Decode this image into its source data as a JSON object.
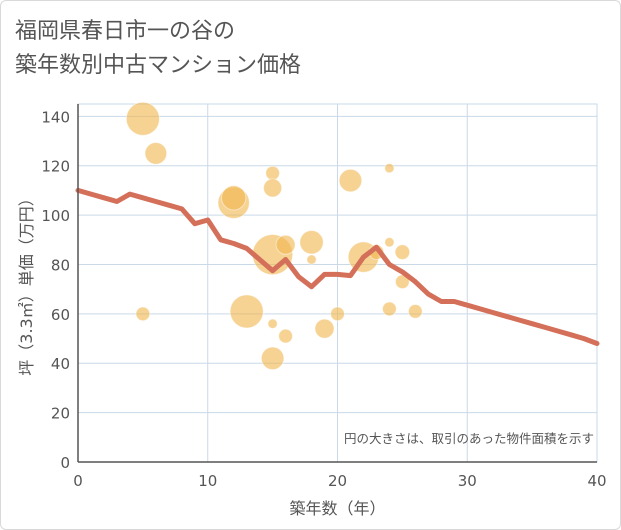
{
  "title": {
    "line1": "福岡県春日市一の谷の",
    "line2": "築年数別中古マンション価格"
  },
  "chart_data": {
    "type": "scatter",
    "title": "福岡県春日市一の谷の 築年数別中古マンション価格",
    "xlabel": "築年数（年）",
    "ylabel": "坪（3.3㎡）単価（万円）",
    "xlim": [
      0,
      40
    ],
    "ylim": [
      0,
      145
    ],
    "xticks": [
      "0",
      "10",
      "20",
      "30",
      "40"
    ],
    "yticks": [
      "0",
      "20",
      "40",
      "60",
      "80",
      "100",
      "120",
      "140"
    ],
    "grid": true,
    "annotation": "円の大きさは、取引のあった物件面積を示す",
    "colors": {
      "bubble": "#f0b650",
      "trend": "#d4705a",
      "grid": "#c9d9e8",
      "axis": "#555555"
    },
    "bubbles": [
      {
        "x": 5,
        "y": 139,
        "size": 3.2
      },
      {
        "x": 5,
        "y": 60,
        "size": 1.0
      },
      {
        "x": 6,
        "y": 125,
        "size": 1.9
      },
      {
        "x": 12,
        "y": 105,
        "size": 3.0
      },
      {
        "x": 12,
        "y": 107,
        "size": 2.2
      },
      {
        "x": 13,
        "y": 61,
        "size": 3.2
      },
      {
        "x": 15,
        "y": 117,
        "size": 1.0
      },
      {
        "x": 15,
        "y": 111,
        "size": 1.5
      },
      {
        "x": 15,
        "y": 84,
        "size": 4.0
      },
      {
        "x": 15,
        "y": 56,
        "size": 0.5
      },
      {
        "x": 15,
        "y": 42,
        "size": 2.0
      },
      {
        "x": 16,
        "y": 88,
        "size": 1.6
      },
      {
        "x": 16,
        "y": 51,
        "size": 1.0
      },
      {
        "x": 18,
        "y": 89,
        "size": 2.1
      },
      {
        "x": 18,
        "y": 82,
        "size": 0.5
      },
      {
        "x": 19,
        "y": 54,
        "size": 1.6
      },
      {
        "x": 20,
        "y": 60,
        "size": 1.0
      },
      {
        "x": 21,
        "y": 114,
        "size": 2.0
      },
      {
        "x": 22,
        "y": 83,
        "size": 2.9
      },
      {
        "x": 23,
        "y": 85,
        "size": 1.1
      },
      {
        "x": 24,
        "y": 119,
        "size": 0.5
      },
      {
        "x": 24,
        "y": 89,
        "size": 0.5
      },
      {
        "x": 24,
        "y": 62,
        "size": 1.0
      },
      {
        "x": 25,
        "y": 85,
        "size": 1.1
      },
      {
        "x": 25,
        "y": 73,
        "size": 1.0
      },
      {
        "x": 26,
        "y": 61,
        "size": 1.0
      }
    ],
    "trend": {
      "x": [
        0,
        1,
        2,
        3,
        4,
        5,
        6,
        7,
        8,
        9,
        10,
        11,
        12,
        13,
        14,
        15,
        16,
        17,
        18,
        19,
        20,
        21,
        22,
        23,
        24,
        25,
        26,
        27,
        28,
        29,
        30,
        31,
        32,
        33,
        34,
        35,
        36,
        37,
        38,
        39,
        40
      ],
      "y": [
        110,
        108.5,
        107,
        105.5,
        108.5,
        107,
        105.5,
        104,
        102.5,
        96.5,
        98,
        90,
        88.5,
        86.5,
        82,
        77.5,
        82,
        75,
        71,
        76,
        76,
        75.5,
        83,
        87,
        80,
        77,
        73,
        68,
        65,
        65,
        63.5,
        62,
        60.5,
        59,
        57.5,
        56,
        54.5,
        53,
        51.5,
        50,
        48
      ]
    }
  }
}
